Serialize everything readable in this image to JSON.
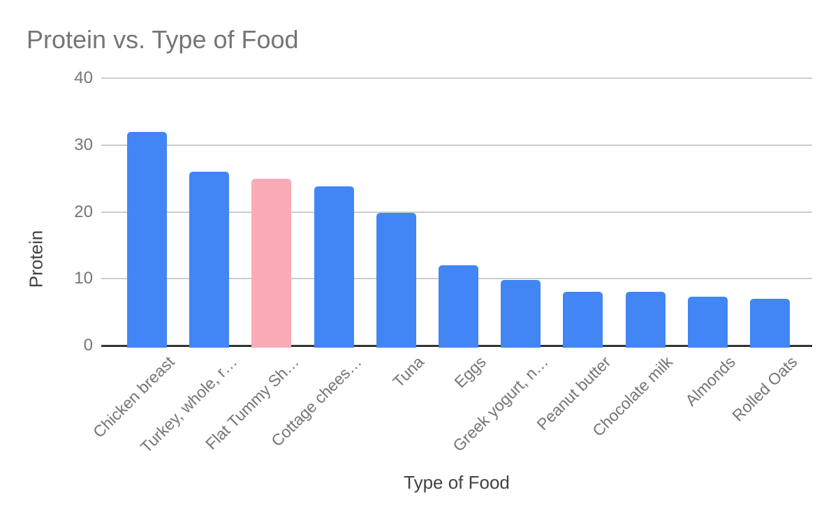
{
  "chart_data": {
    "type": "bar",
    "title": "Protein vs. Type of Food",
    "xlabel": "Type of Food",
    "ylabel": "Protein",
    "categories": [
      "Chicken breast",
      "Turkey, whole, r…",
      "Flat Tummy Sh…",
      "Cottage chees…",
      "Tuna",
      "Eggs",
      "Greek yogurt, n…",
      "Peanut butter",
      "Chocolate milk",
      "Almonds",
      "Rolled Oats"
    ],
    "values": [
      32,
      26,
      25,
      23.8,
      19.8,
      12,
      9.8,
      8,
      8,
      7.3,
      7
    ],
    "yticks": [
      0,
      10,
      20,
      30,
      40
    ],
    "ylim": [
      0,
      40
    ],
    "grid": true,
    "legend_position": "none",
    "bar_default_color": "#4285F4",
    "highlighted_bar": {
      "index": 2,
      "color": "#FBABB8"
    }
  },
  "colors": {
    "background": "#ffffff",
    "bar_blue": "#4285F4",
    "bar_pink": "#FBABB8",
    "gridline": "#cccccc",
    "axis_line": "#333333",
    "title_text": "#757575",
    "tick_text": "#757575",
    "axis_title_text": "#424242"
  }
}
